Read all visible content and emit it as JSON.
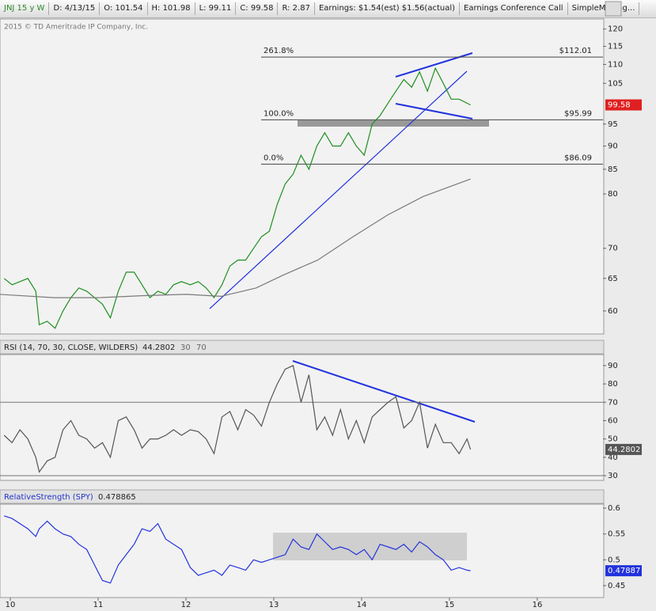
{
  "header": {
    "items": [
      "JNJ 15 y W",
      "D: 4/13/15",
      "O: 101.54",
      "H: 101.98",
      "L: 99.11",
      "C: 99.58",
      "R: 2.87",
      "Earnings: $1.54(est) $1.56(actual)",
      "Earnings Conference Call",
      "SimpleMoving..."
    ]
  },
  "copyright": "2015 © TD Ameritrade IP Company, Inc.",
  "chart_data": [
    {
      "type": "line",
      "log_scale": true,
      "x": [
        9.93,
        10.02,
        10.11,
        10.2,
        10.29,
        10.33,
        10.42,
        10.51,
        10.6,
        10.69,
        10.78,
        10.87,
        10.96,
        11.05,
        11.14,
        11.23,
        11.32,
        11.41,
        11.5,
        11.59,
        11.68,
        11.77,
        11.86,
        11.95,
        12.05,
        12.14,
        12.23,
        12.32,
        12.41,
        12.5,
        12.59,
        12.68,
        12.77,
        12.86,
        12.95,
        13.04,
        13.13,
        13.22,
        13.31,
        13.4,
        13.49,
        13.58,
        13.67,
        13.76,
        13.85,
        13.94,
        14.03,
        14.12,
        14.21,
        14.3,
        14.39,
        14.48,
        14.57,
        14.66,
        14.75,
        14.84,
        14.93,
        15.02,
        15.11,
        15.2,
        15.24
      ],
      "series": [
        {
          "color": "#1f8f1f",
          "values": [
            65,
            64,
            64.5,
            65,
            63,
            58,
            58.5,
            57.5,
            60,
            62,
            63.5,
            63,
            62,
            61,
            59,
            63,
            66,
            66,
            64,
            62,
            63,
            62.5,
            64,
            64.5,
            64,
            64.5,
            63.5,
            62,
            64,
            67,
            68,
            68,
            70,
            72,
            73,
            78,
            82,
            84,
            88,
            85,
            90,
            93,
            90,
            90,
            93,
            90,
            88,
            95,
            97,
            100,
            103,
            106,
            104,
            108,
            103,
            109,
            105,
            101,
            101,
            100,
            99.58
          ]
        },
        {
          "color": "#7a7a7a",
          "x": [
            9.88,
            10.5,
            11,
            11.5,
            12,
            12.4,
            12.8,
            13.1,
            13.5,
            13.9,
            14.3,
            14.7,
            15.24
          ],
          "values": [
            62.5,
            62,
            62,
            62.3,
            62.5,
            62.2,
            63.5,
            65.5,
            68,
            72,
            76,
            79.5,
            83
          ]
        }
      ],
      "last_label": "99.58",
      "last_color": "#e02020",
      "fib_levels": [
        {
          "label": "261.8%",
          "value": 112.01,
          "value_label": "$112.01"
        },
        {
          "label": "100.0%",
          "value": 95.99,
          "value_label": "$95.99"
        },
        {
          "label": "0.0%",
          "value": 86.09,
          "value_label": "$86.09"
        }
      ],
      "xlim": [
        9.883,
        16.748
      ],
      "ylim": [
        56.7,
        123
      ],
      "yticks": [
        120,
        115,
        110,
        105,
        95,
        90,
        85,
        80,
        70,
        65,
        60
      ]
    },
    {
      "type": "line",
      "title": "RSI (14, 70, 30, CLOSE, WILDERS)",
      "header_value": "44.2802",
      "levels_text": [
        "30",
        "70"
      ],
      "levels": [
        70,
        30
      ],
      "x": [
        9.93,
        10.02,
        10.11,
        10.2,
        10.29,
        10.33,
        10.42,
        10.51,
        10.6,
        10.69,
        10.78,
        10.87,
        10.96,
        11.05,
        11.14,
        11.23,
        11.32,
        11.41,
        11.5,
        11.59,
        11.68,
        11.77,
        11.86,
        11.95,
        12.05,
        12.14,
        12.23,
        12.32,
        12.41,
        12.5,
        12.59,
        12.68,
        12.77,
        12.86,
        12.95,
        13.04,
        13.13,
        13.22,
        13.31,
        13.4,
        13.49,
        13.58,
        13.67,
        13.76,
        13.85,
        13.94,
        14.03,
        14.12,
        14.21,
        14.3,
        14.39,
        14.48,
        14.57,
        14.66,
        14.75,
        14.84,
        14.93,
        15.02,
        15.11,
        15.2,
        15.24
      ],
      "series": [
        {
          "color": "#555555",
          "values": [
            52,
            48,
            55,
            50,
            40,
            32,
            38,
            40,
            55,
            60,
            52,
            50,
            45,
            48,
            40,
            60,
            62,
            55,
            45,
            50,
            50,
            52,
            55,
            52,
            55,
            54,
            50,
            42,
            62,
            65,
            55,
            66,
            63,
            57,
            70,
            80,
            88,
            90,
            70,
            85,
            55,
            62,
            52,
            66,
            50,
            60,
            48,
            62,
            66,
            70,
            73,
            56,
            60,
            70,
            45,
            58,
            48,
            48,
            42,
            50,
            44.28
          ]
        }
      ],
      "last_label": "44.2802",
      "last_color": "#555555",
      "xlim": [
        9.883,
        16.748
      ],
      "ylim": [
        27.4,
        96
      ],
      "yticks": [
        90,
        80,
        70,
        60,
        50,
        40,
        30
      ]
    },
    {
      "type": "line",
      "title": "RelativeStrength (SPY)",
      "header_value": "0.478865",
      "x": [
        9.93,
        10.02,
        10.11,
        10.2,
        10.29,
        10.33,
        10.42,
        10.51,
        10.6,
        10.69,
        10.78,
        10.87,
        10.96,
        11.05,
        11.14,
        11.23,
        11.32,
        11.41,
        11.5,
        11.59,
        11.68,
        11.77,
        11.86,
        11.95,
        12.05,
        12.14,
        12.23,
        12.32,
        12.41,
        12.5,
        12.59,
        12.68,
        12.77,
        12.86,
        12.95,
        13.04,
        13.13,
        13.22,
        13.31,
        13.4,
        13.49,
        13.58,
        13.67,
        13.76,
        13.85,
        13.94,
        14.03,
        14.12,
        14.21,
        14.3,
        14.39,
        14.48,
        14.57,
        14.66,
        14.75,
        14.84,
        14.93,
        15.02,
        15.11,
        15.2,
        15.24
      ],
      "series": [
        {
          "color": "#2233dd",
          "values": [
            0.585,
            0.58,
            0.57,
            0.56,
            0.545,
            0.56,
            0.575,
            0.56,
            0.55,
            0.545,
            0.53,
            0.52,
            0.49,
            0.46,
            0.455,
            0.49,
            0.51,
            0.53,
            0.56,
            0.555,
            0.57,
            0.54,
            0.53,
            0.52,
            0.485,
            0.47,
            0.475,
            0.48,
            0.47,
            0.49,
            0.485,
            0.48,
            0.5,
            0.495,
            0.5,
            0.505,
            0.51,
            0.54,
            0.525,
            0.52,
            0.55,
            0.535,
            0.52,
            0.525,
            0.52,
            0.51,
            0.52,
            0.5,
            0.53,
            0.525,
            0.52,
            0.53,
            0.515,
            0.535,
            0.525,
            0.51,
            0.5,
            0.48,
            0.485,
            0.48,
            0.47887
          ]
        }
      ],
      "last_label": "0.47887",
      "last_color": "#2233dd",
      "xlim": [
        9.883,
        16.748
      ],
      "ylim": [
        0.427,
        0.6077
      ],
      "yticks": [
        0.6,
        0.55,
        0.5,
        0.45
      ],
      "xticks": [
        10,
        11,
        12,
        13,
        14,
        15,
        16
      ]
    }
  ]
}
